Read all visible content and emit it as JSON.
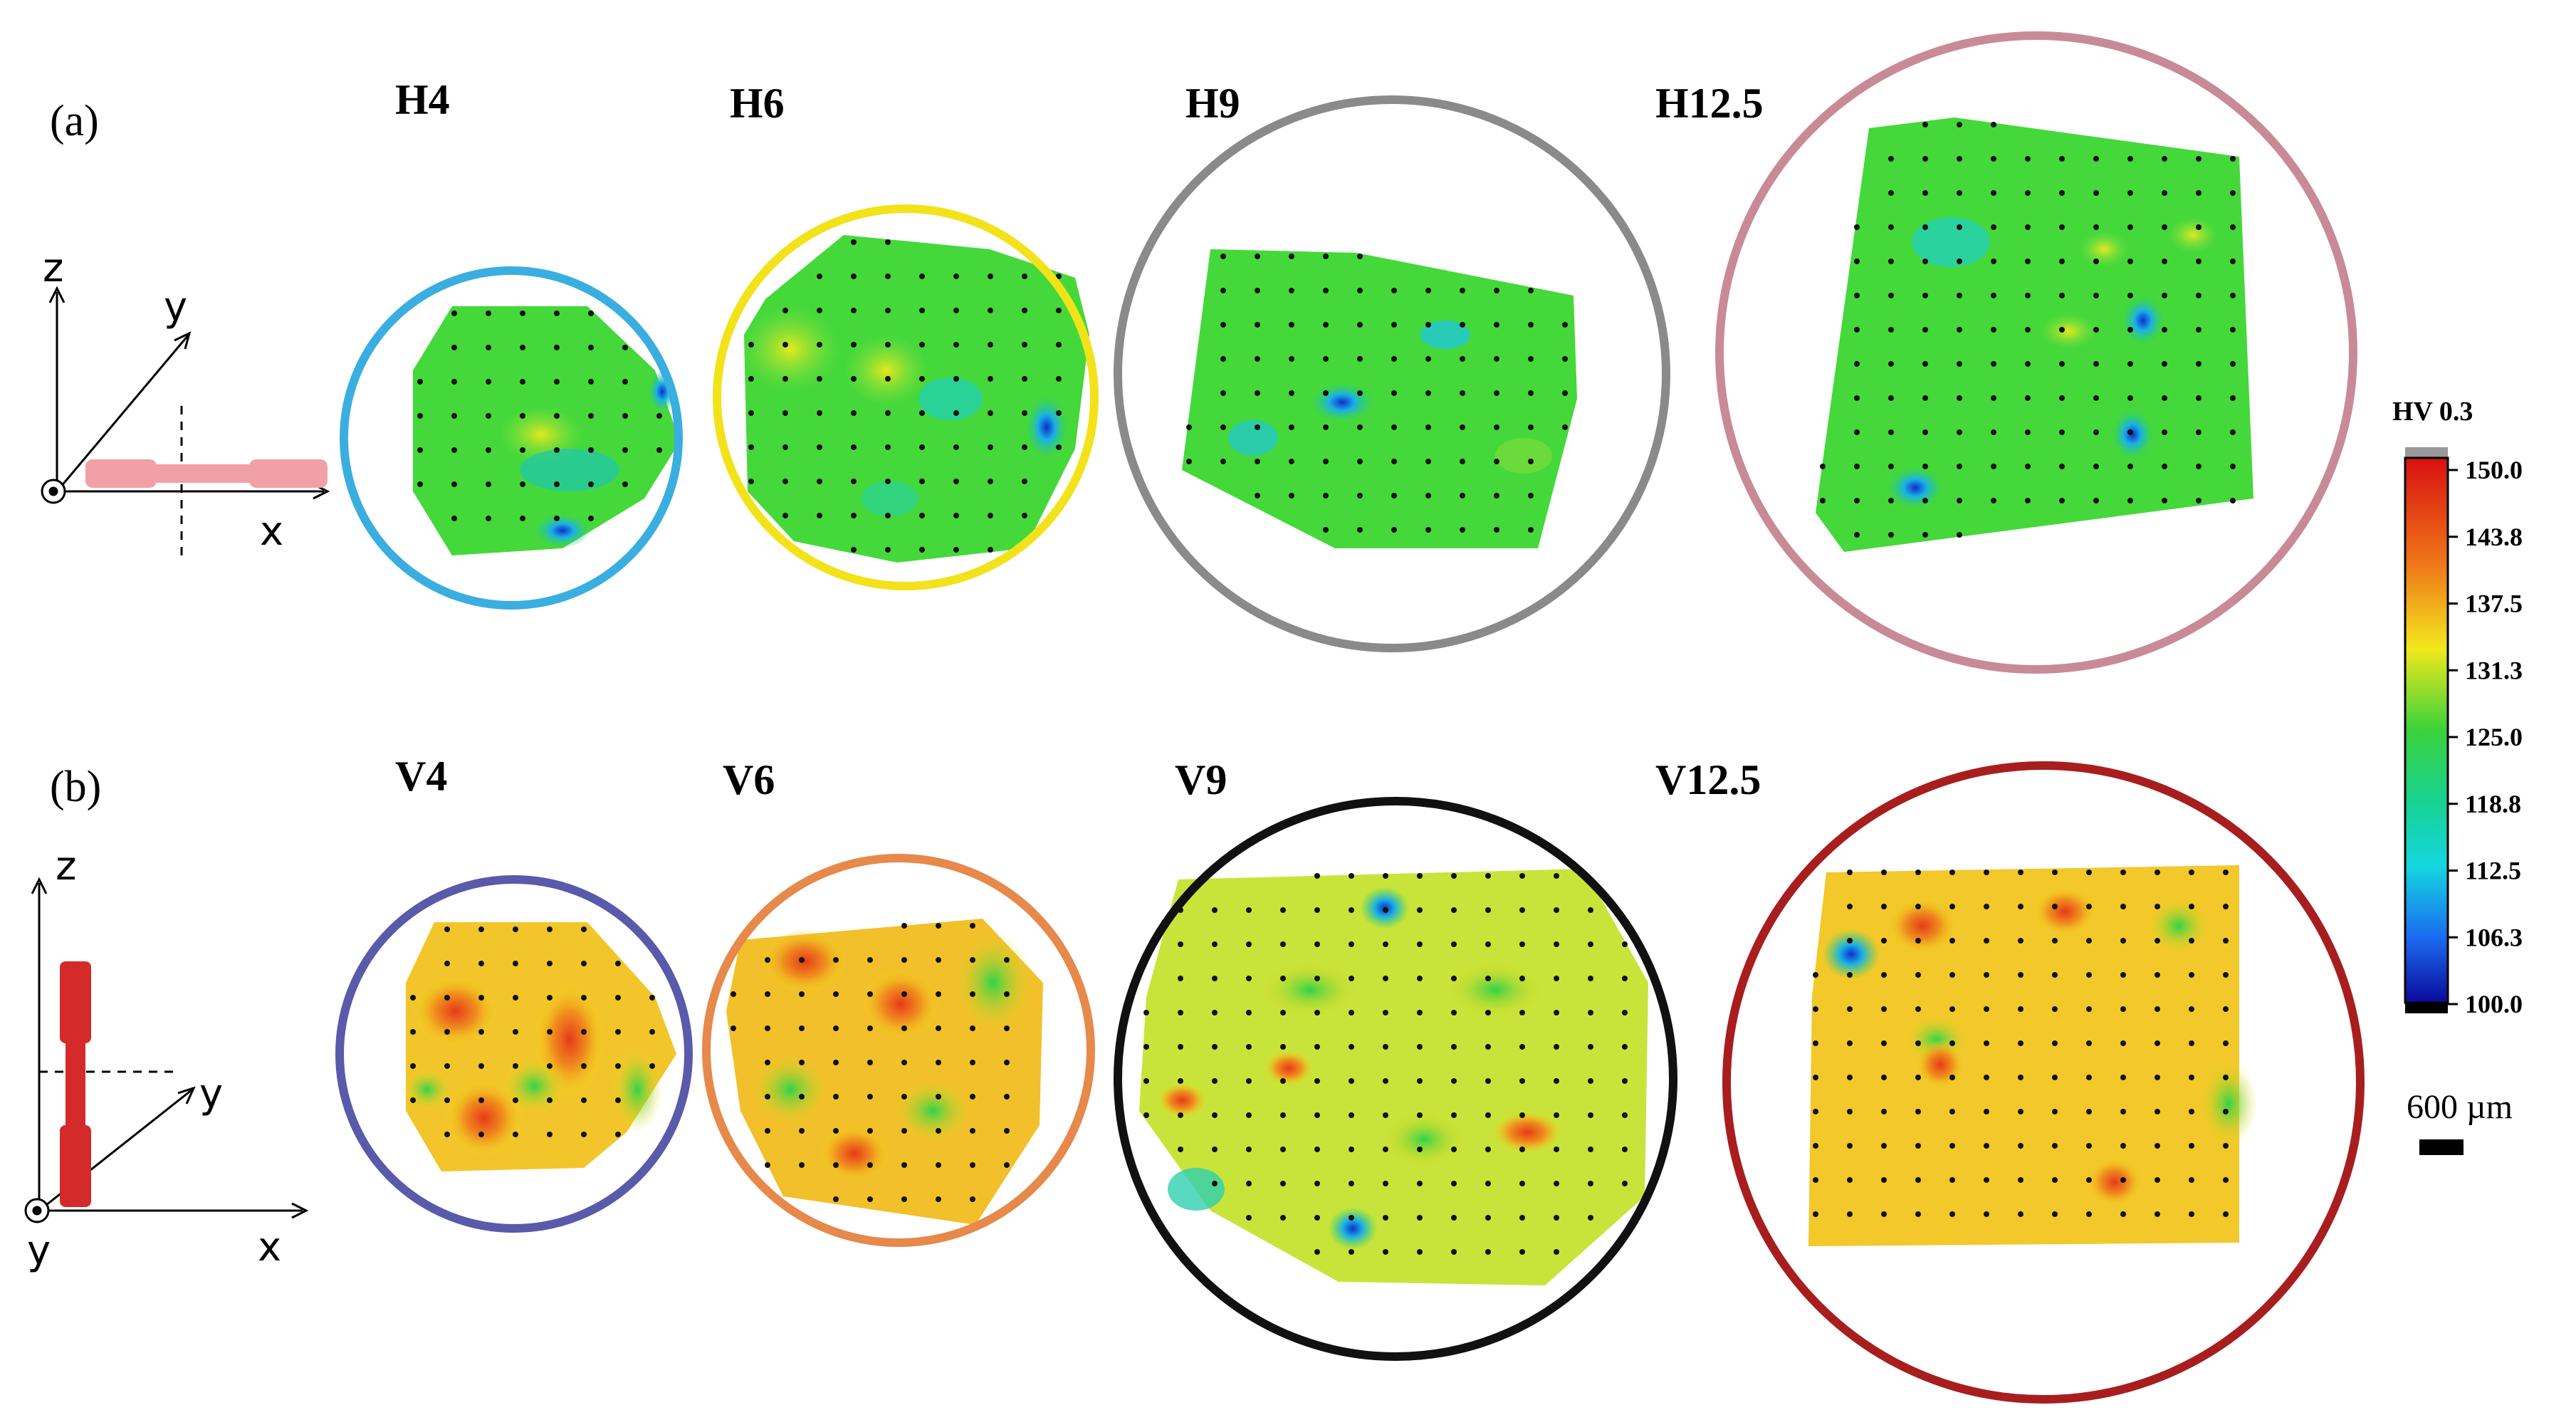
{
  "panels": {
    "a": {
      "label": "(a)",
      "axes": {
        "z": "z",
        "y": "y",
        "x": "x"
      },
      "samples": [
        {
          "label": "H4",
          "ring_color": "#3aaee0"
        },
        {
          "label": "H6",
          "ring_color": "#f2e21a"
        },
        {
          "label": "H9",
          "ring_color": "#8a8a8a"
        },
        {
          "label": "H12.5",
          "ring_color": "#c98a98"
        }
      ]
    },
    "b": {
      "label": "(b)",
      "axes": {
        "z": "z",
        "y": "y",
        "x": "x",
        "y_out": "y"
      },
      "samples": [
        {
          "label": "V4",
          "ring_color": "#5a5aaa"
        },
        {
          "label": "V6",
          "ring_color": "#e6894a"
        },
        {
          "label": "V9",
          "ring_color": "#111111"
        },
        {
          "label": "V12.5",
          "ring_color": "#a81e1e"
        }
      ]
    }
  },
  "colorbar": {
    "title": "HV 0.3",
    "ticks": [
      "150.0",
      "143.8",
      "137.5",
      "131.3",
      "125.0",
      "118.8",
      "112.5",
      "106.3",
      "100.0"
    ]
  },
  "scale_bar": {
    "label": "600 µm"
  }
}
